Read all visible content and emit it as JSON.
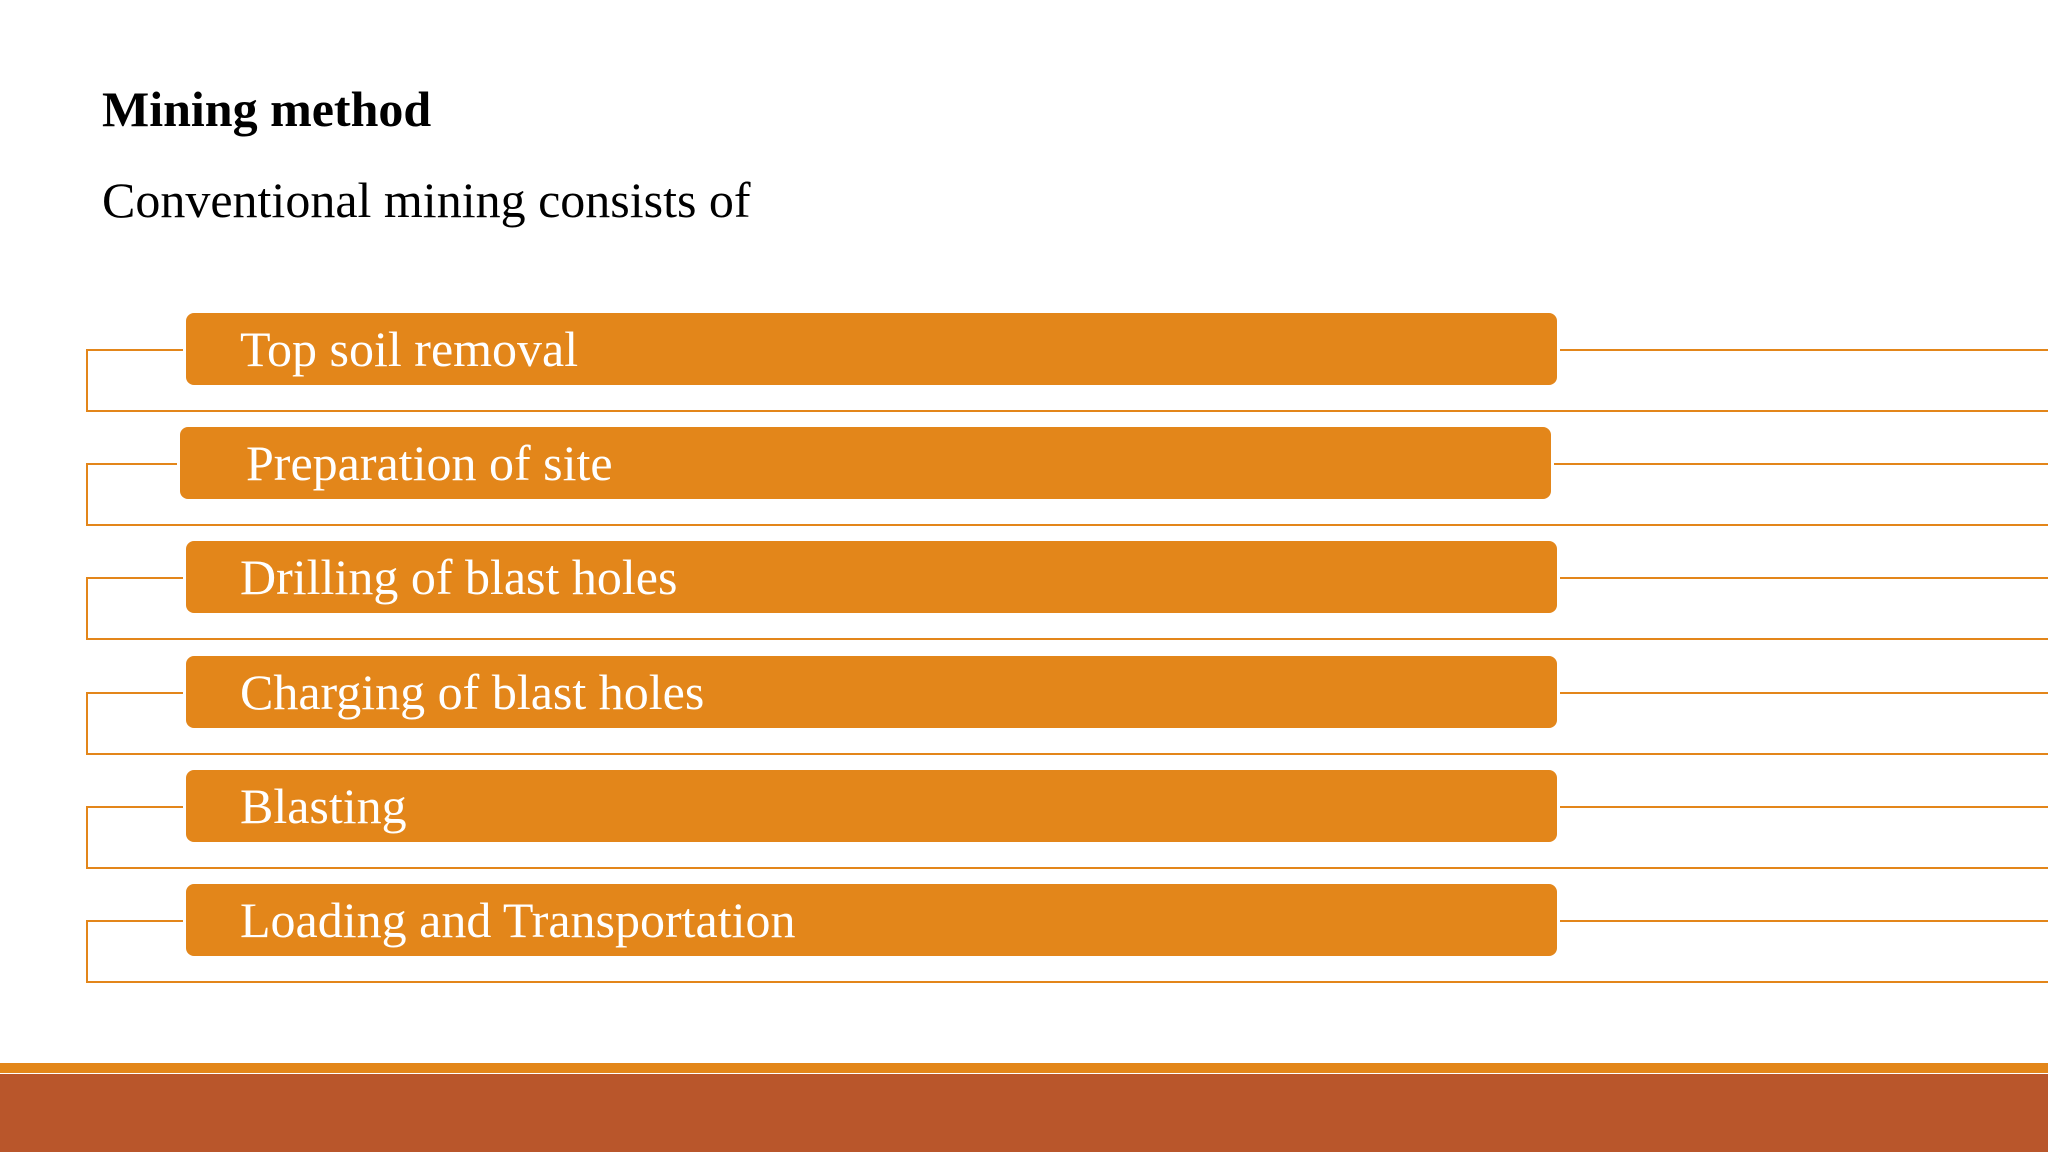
{
  "slide": {
    "title": "Mining method",
    "subtitle": "Conventional mining consists of"
  },
  "steps": [
    {
      "label": "Top soil removal"
    },
    {
      "label": "Preparation of site"
    },
    {
      "label": "Drilling of blast holes"
    },
    {
      "label": "Charging of blast holes"
    },
    {
      "label": "Blasting"
    },
    {
      "label": "Loading and Transportation"
    }
  ],
  "colors": {
    "accent": "#e3861a",
    "footer": "#b9562b",
    "background": "#ffffff"
  }
}
